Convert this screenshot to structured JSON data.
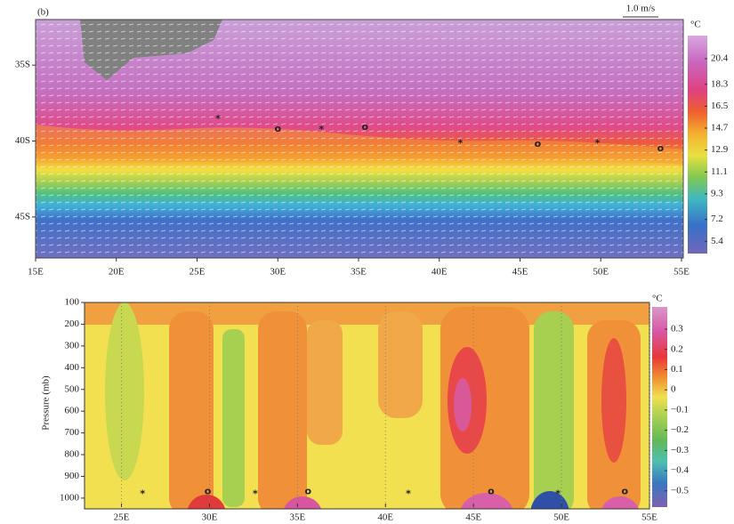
{
  "chart_data": [
    {
      "type": "map",
      "panel_label": "(b)",
      "vector_label": "1.0 m/s",
      "colorbar_label": "°C",
      "xlim": [
        15,
        55
      ],
      "xticks": [
        {
          "value": 15,
          "label": "15E"
        },
        {
          "value": 20,
          "label": "20E"
        },
        {
          "value": 25,
          "label": "25E"
        },
        {
          "value": 30,
          "label": "30E"
        },
        {
          "value": 35,
          "label": "35E"
        },
        {
          "value": 40,
          "label": "40E"
        },
        {
          "value": 45,
          "label": "45E"
        },
        {
          "value": 50,
          "label": "50E"
        },
        {
          "value": 55,
          "label": "55E"
        }
      ],
      "ylim": [
        -32,
        -47.7
      ],
      "yticks": [
        {
          "value": -35,
          "label": "35S"
        },
        {
          "value": -40,
          "label": "40S"
        },
        {
          "value": -45,
          "label": "45S"
        }
      ],
      "clim": [
        4.4,
        22.3
      ],
      "colorbar_ticks": [
        20.4,
        18.3,
        16.5,
        14.7,
        12.9,
        11.1,
        9.3,
        7.2,
        5.4
      ],
      "markers": [
        {
          "symbol": "*",
          "x": 26.3,
          "y": -38.4
        },
        {
          "symbol": "o",
          "x": 30,
          "y": -39.2
        },
        {
          "symbol": "*",
          "x": 32.7,
          "y": -39.1
        },
        {
          "symbol": "o",
          "x": 35.4,
          "y": -39.1
        },
        {
          "symbol": "*",
          "x": 41.3,
          "y": -40
        },
        {
          "symbol": "o",
          "x": 46.1,
          "y": -40.2
        },
        {
          "symbol": "*",
          "x": 49.8,
          "y": -40
        },
        {
          "symbol": "o",
          "x": 53.7,
          "y": -40.5
        }
      ]
    },
    {
      "type": "section",
      "ylabel": "Pressure (mb)",
      "colorbar_label": "°C",
      "grid": true,
      "xlim": [
        22.9,
        55
      ],
      "xticks": [
        {
          "value": 25,
          "label": "25E"
        },
        {
          "value": 30,
          "label": "30E"
        },
        {
          "value": 35,
          "label": "35E"
        },
        {
          "value": 40,
          "label": "40E"
        },
        {
          "value": 45,
          "label": "45E"
        },
        {
          "value": 50,
          "label": "50E"
        },
        {
          "value": 55,
          "label": "55E"
        }
      ],
      "ylim": [
        100,
        1025
      ],
      "yticks": [
        100,
        200,
        300,
        400,
        500,
        600,
        700,
        800,
        900,
        1000
      ],
      "clim": [
        -0.58,
        0.41
      ],
      "colorbar_ticks": [
        0.3,
        0.2,
        0.1,
        0,
        {
          "value": -0.1,
          "label": "−0.1"
        },
        {
          "value": -0.2,
          "label": "−0.2"
        },
        {
          "value": -0.3,
          "label": "−0.3"
        },
        {
          "value": -0.4,
          "label": "−0.4"
        },
        {
          "value": -0.5,
          "label": "−0.5"
        }
      ],
      "markers": [
        {
          "symbol": "*",
          "x": 26.2,
          "y": 970
        },
        {
          "symbol": "o",
          "x": 29.9,
          "y": 970
        },
        {
          "symbol": "*",
          "x": 32.6,
          "y": 970
        },
        {
          "symbol": "o",
          "x": 35.6,
          "y": 970
        },
        {
          "symbol": "*",
          "x": 41.3,
          "y": 970
        },
        {
          "symbol": "o",
          "x": 46,
          "y": 970
        },
        {
          "symbol": "*",
          "x": 49.8,
          "y": 970
        },
        {
          "symbol": "o",
          "x": 53.6,
          "y": 970
        }
      ]
    }
  ]
}
